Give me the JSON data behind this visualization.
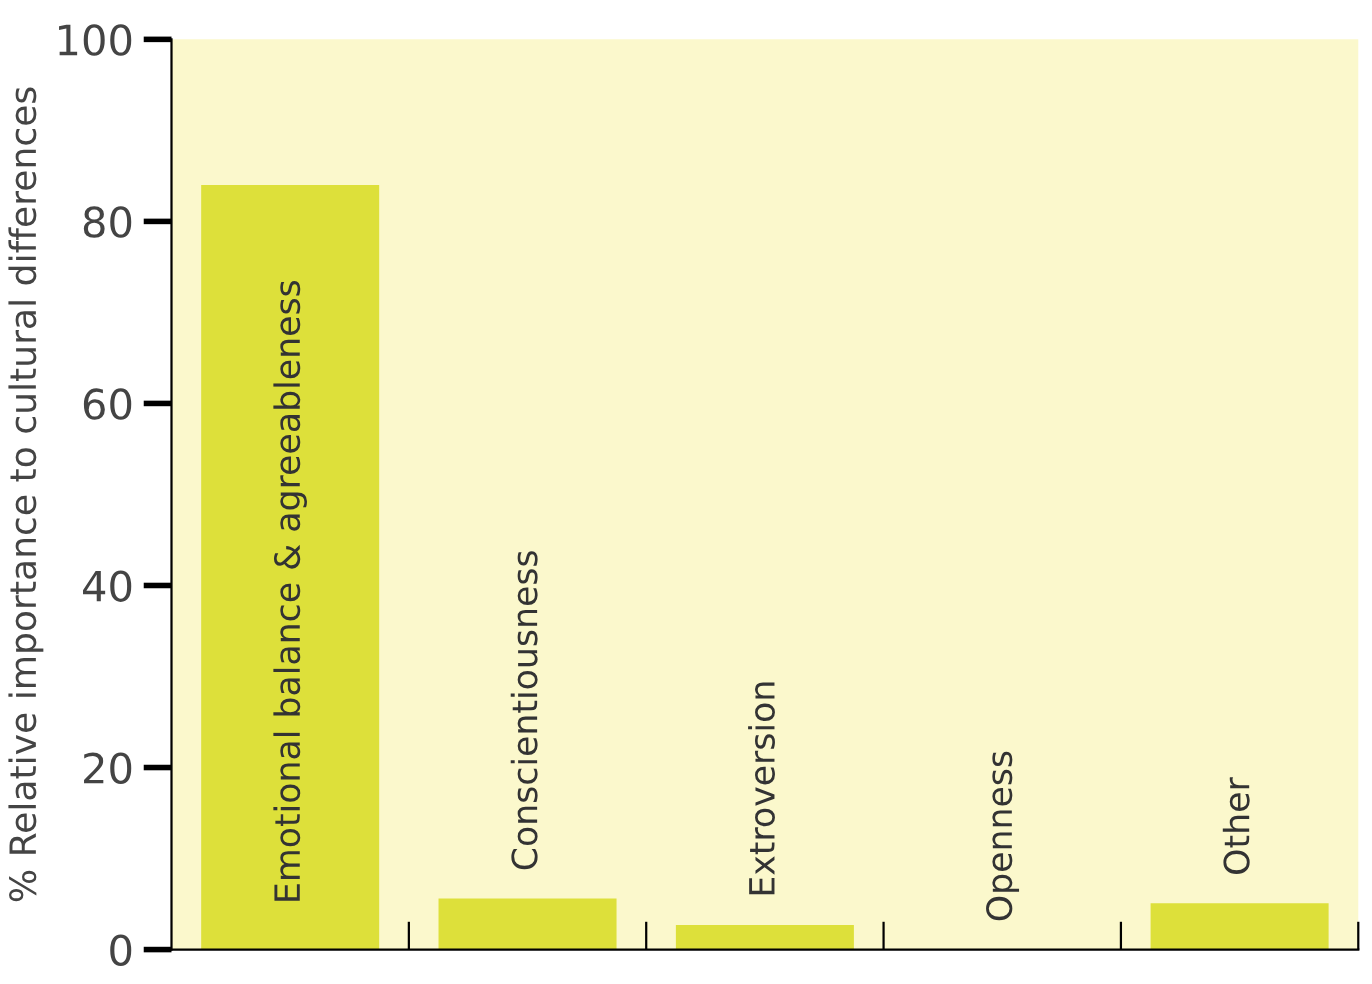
{
  "chart_data": {
    "type": "bar",
    "ylabel": "% Relative importance to cultural differences",
    "categories": [
      "Emotional balance & agreeableness",
      "Conscientiousness",
      "Extroversion",
      "Openness",
      "Other"
    ],
    "values": [
      84,
      5.6,
      2.7,
      0,
      5.1
    ],
    "color": "#dde03a",
    "ylim": [
      0,
      100
    ],
    "yticks": [
      0,
      20,
      40,
      60,
      80,
      100
    ],
    "grid": false
  }
}
